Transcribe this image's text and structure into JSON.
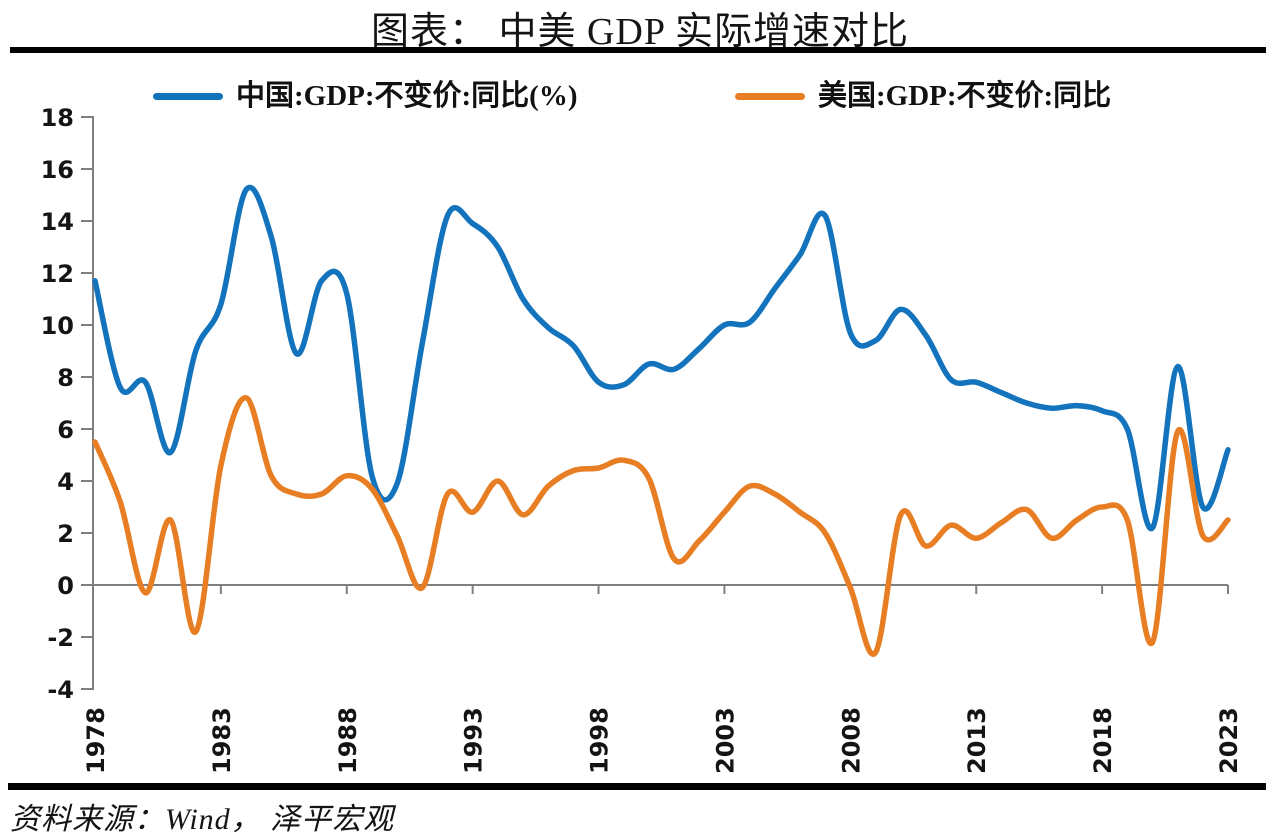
{
  "title": "图表： 中美 GDP 实际增速对比",
  "source": "资料来源：Wind， 泽平宏观",
  "legend": {
    "items": [
      {
        "label": "中国:GDP:不变价:同比(%)",
        "color": "#1473BD"
      },
      {
        "label": "美国:GDP:不变价:同比",
        "color": "#E87E23"
      }
    ]
  },
  "chart_data": {
    "type": "line",
    "title": "图表： 中美 GDP 实际增速对比",
    "x": [
      1978,
      1979,
      1980,
      1981,
      1982,
      1983,
      1984,
      1985,
      1986,
      1987,
      1988,
      1989,
      1990,
      1991,
      1992,
      1993,
      1994,
      1995,
      1996,
      1997,
      1998,
      1999,
      2000,
      2001,
      2002,
      2003,
      2004,
      2005,
      2006,
      2007,
      2008,
      2009,
      2010,
      2011,
      2012,
      2013,
      2014,
      2015,
      2016,
      2017,
      2018,
      2019,
      2020,
      2021,
      2022,
      2023
    ],
    "series": [
      {
        "name": "中国:GDP:不变价:同比(%)",
        "color": "#1473BD",
        "values": [
          11.7,
          7.6,
          7.8,
          5.1,
          9.0,
          10.8,
          15.2,
          13.4,
          8.9,
          11.7,
          11.2,
          4.2,
          3.9,
          9.3,
          14.2,
          13.9,
          13.0,
          11.0,
          9.9,
          9.2,
          7.8,
          7.7,
          8.5,
          8.3,
          9.1,
          10.0,
          10.1,
          11.4,
          12.7,
          14.2,
          9.7,
          9.4,
          10.6,
          9.6,
          7.9,
          7.8,
          7.4,
          7.0,
          6.8,
          6.9,
          6.7,
          6.0,
          2.2,
          8.4,
          3.0,
          5.2
        ]
      },
      {
        "name": "美国:GDP:不变价:同比",
        "color": "#E87E23",
        "values": [
          5.5,
          3.2,
          -0.3,
          2.5,
          -1.8,
          4.6,
          7.2,
          4.2,
          3.5,
          3.5,
          4.2,
          3.7,
          1.9,
          -0.1,
          3.5,
          2.8,
          4.0,
          2.7,
          3.8,
          4.4,
          4.5,
          4.8,
          4.1,
          1.0,
          1.7,
          2.8,
          3.8,
          3.5,
          2.8,
          2.0,
          -0.1,
          -2.6,
          2.7,
          1.5,
          2.3,
          1.8,
          2.4,
          2.9,
          1.8,
          2.5,
          3.0,
          2.5,
          -2.2,
          5.9,
          1.9,
          2.5
        ]
      }
    ],
    "xlabel": "",
    "ylabel": "",
    "ylim": [
      -4,
      18
    ],
    "ytick_step": 2,
    "xticks": [
      1978,
      1983,
      1988,
      1993,
      1998,
      2003,
      2008,
      2013,
      2018,
      2023
    ],
    "grid": false,
    "legend_position": "top",
    "smooth": true,
    "axis_color": "#7F7F7F"
  }
}
